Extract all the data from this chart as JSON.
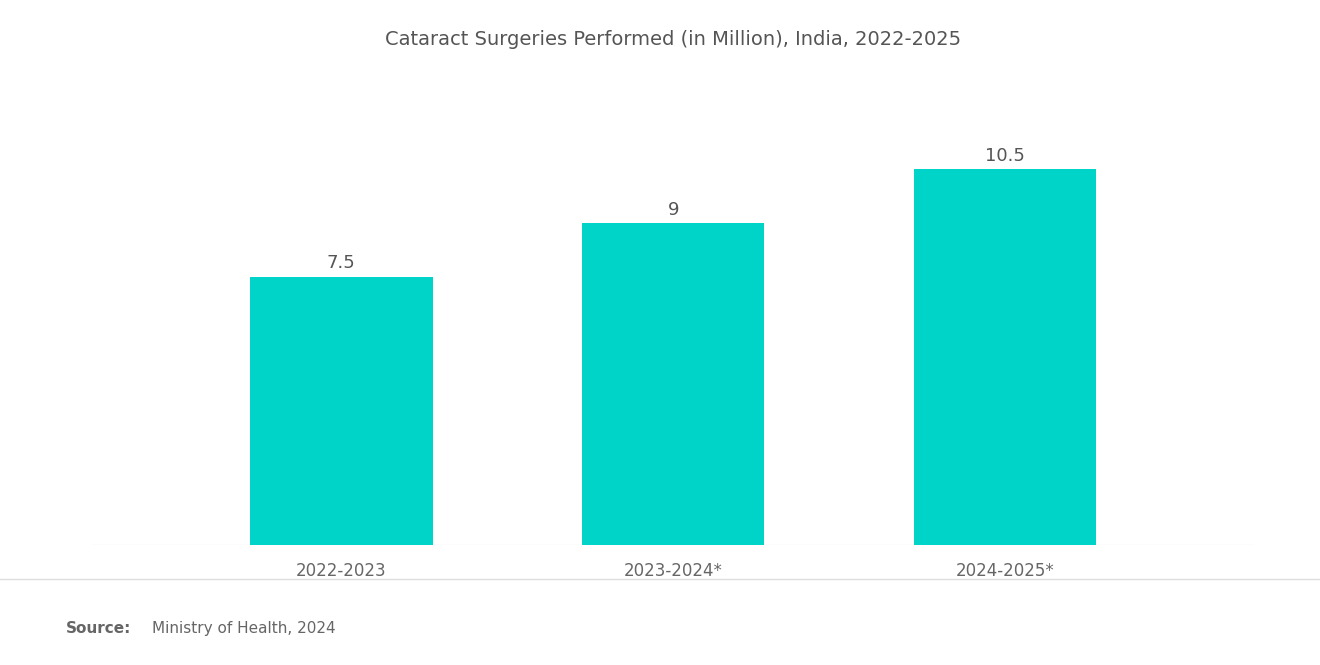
{
  "title": "Cataract Surgeries Performed (in Million), India, 2022-2025",
  "categories": [
    "2022-2023",
    "2023-2024*",
    "2024-2025*"
  ],
  "values": [
    7.5,
    9.0,
    10.5
  ],
  "bar_color": "#00D4C8",
  "bar_width": 0.55,
  "value_labels": [
    "7.5",
    "9",
    "10.5"
  ],
  "source_bold": "Source:",
  "source_text": "Ministry of Health, 2024",
  "background_color": "#ffffff",
  "title_fontsize": 14,
  "label_fontsize": 12,
  "value_fontsize": 13,
  "source_fontsize": 11,
  "ylim": [
    0,
    13
  ],
  "title_color": "#555555",
  "label_color": "#666666",
  "value_color": "#555555",
  "source_color": "#666666",
  "line_color": "#dddddd"
}
